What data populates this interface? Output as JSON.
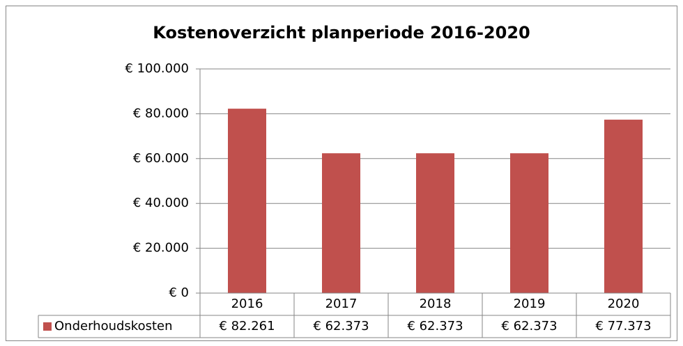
{
  "chart_data": {
    "type": "bar",
    "title": "Kostenoverzicht planperiode 2016-2020",
    "categories": [
      "2016",
      "2017",
      "2018",
      "2019",
      "2020"
    ],
    "series": [
      {
        "name": "Onderhoudskosten",
        "color": "#c0504d",
        "values": [
          82261,
          62373,
          62373,
          62373,
          77373
        ],
        "value_labels": [
          "€ 82.261",
          "€ 62.373",
          "€ 62.373",
          "€ 62.373",
          "€ 77.373"
        ]
      }
    ],
    "ylim": [
      0,
      100000
    ],
    "yticks": [
      {
        "value": 0,
        "label": "€ 0"
      },
      {
        "value": 20000,
        "label": "€ 20.000"
      },
      {
        "value": 40000,
        "label": "€ 40.000"
      },
      {
        "value": 60000,
        "label": "€ 60.000"
      },
      {
        "value": 80000,
        "label": "€ 80.000"
      },
      {
        "value": 100000,
        "label": "€ 100.000"
      }
    ],
    "grid": true,
    "data_table": true
  }
}
